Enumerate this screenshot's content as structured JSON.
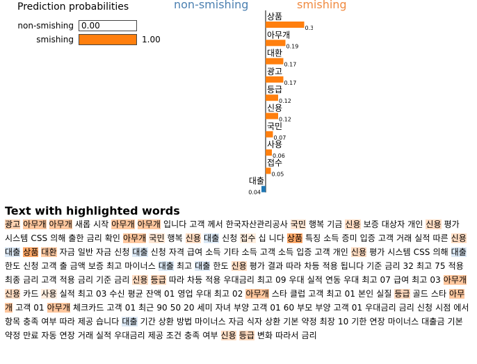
{
  "pred_probs": {
    "title": "Prediction probabilities",
    "rows": [
      {
        "label": "non-smishing",
        "value": 0.0,
        "value_text": "0.00",
        "color": "#1f77b4"
      },
      {
        "label": "smishing",
        "value": 1.0,
        "value_text": "1.00",
        "color": "#ff7f0e"
      }
    ]
  },
  "class_labels": {
    "left": "non-smishing",
    "right": "smishing"
  },
  "chart_data": {
    "type": "bar",
    "orientation": "horizontal",
    "categories": [
      "상품",
      "아무개",
      "대환",
      "광고",
      "등급",
      "신용",
      "국민",
      "사용",
      "접수",
      "대출"
    ],
    "values": [
      0.37,
      0.19,
      0.17,
      0.17,
      0.12,
      0.12,
      0.07,
      0.06,
      0.05,
      -0.04
    ],
    "labels": [
      "0.37",
      "0.19",
      "0.17",
      "0.17",
      "0.12",
      "0.12",
      "0.07",
      "0.06",
      "0.05",
      "0.04"
    ],
    "colors": {
      "positive": "#ff7f0e",
      "negative": "#1f77b4"
    }
  },
  "text_section": {
    "title": "Text with highlighted words",
    "tokens": [
      {
        "t": "광고",
        "h": "#ffd2b0"
      },
      {
        "t": "아무개",
        "h": "#ffc79e"
      },
      {
        "t": "아무개",
        "h": "#ffc79e"
      },
      {
        "t": "새롭"
      },
      {
        "t": "시작"
      },
      {
        "t": "아무개",
        "h": "#ffc79e"
      },
      {
        "t": "아무개",
        "h": "#ffc79e"
      },
      {
        "t": "입니다"
      },
      {
        "t": "고객"
      },
      {
        "t": "께서"
      },
      {
        "t": "한국자산관리공사"
      },
      {
        "t": "국민",
        "h": "#ffe6d3"
      },
      {
        "t": "행복"
      },
      {
        "t": "기금"
      },
      {
        "t": "신용",
        "h": "#ffdcc2"
      },
      {
        "t": "보증"
      },
      {
        "t": "대상자"
      },
      {
        "t": "개인"
      },
      {
        "t": "신용",
        "h": "#ffdcc2"
      },
      {
        "t": "평가"
      },
      {
        "t": "시스템"
      },
      {
        "t": "CSS"
      },
      {
        "t": "의해"
      },
      {
        "t": "출한"
      },
      {
        "t": "금리"
      },
      {
        "t": "확인"
      },
      {
        "t": "아무개",
        "h": "#ffc79e"
      },
      {
        "t": "국민",
        "h": "#ffe6d3"
      },
      {
        "t": "행복"
      },
      {
        "t": "신용",
        "h": "#ffdcc2"
      },
      {
        "t": "대출",
        "h": "#dbe8f5"
      },
      {
        "t": "신청"
      },
      {
        "t": "접수",
        "h": "#ffeedf"
      },
      {
        "t": "십"
      },
      {
        "t": "니다"
      },
      {
        "t": "상품",
        "h": "#ffa868"
      },
      {
        "t": "특징"
      },
      {
        "t": "소득"
      },
      {
        "t": "증미"
      },
      {
        "t": "입증"
      },
      {
        "t": "고객"
      },
      {
        "t": "거래"
      },
      {
        "t": "실적"
      },
      {
        "t": "따른"
      },
      {
        "t": "신용",
        "h": "#ffdcc2"
      },
      {
        "t": "대출",
        "h": "#dbe8f5"
      },
      {
        "t": "상품",
        "h": "#ffa868"
      },
      {
        "t": "대환",
        "h": "#ffcaa3"
      },
      {
        "t": "자금"
      },
      {
        "t": "일반"
      },
      {
        "t": "자금"
      },
      {
        "t": "신청"
      },
      {
        "t": "대출",
        "h": "#dbe8f5"
      },
      {
        "t": "신청"
      },
      {
        "t": "자격"
      },
      {
        "t": "급여"
      },
      {
        "t": "소득"
      },
      {
        "t": "기타"
      },
      {
        "t": "소득"
      },
      {
        "t": "고객"
      },
      {
        "t": "소득"
      },
      {
        "t": "입증"
      },
      {
        "t": "고객"
      },
      {
        "t": "개인"
      },
      {
        "t": "신용",
        "h": "#ffdcc2"
      },
      {
        "t": "평가"
      },
      {
        "t": "시스템"
      },
      {
        "t": "CSS"
      },
      {
        "t": "의해"
      },
      {
        "t": "대출",
        "h": "#dbe8f5"
      },
      {
        "t": "한도"
      },
      {
        "t": "신청"
      },
      {
        "t": "고객"
      },
      {
        "t": "출"
      },
      {
        "t": "금액"
      },
      {
        "t": "보증"
      },
      {
        "t": "최고"
      },
      {
        "t": "마이너스"
      },
      {
        "t": "대출",
        "h": "#dbe8f5"
      },
      {
        "t": "최고"
      },
      {
        "t": "대출",
        "h": "#dbe8f5"
      },
      {
        "t": "한도"
      },
      {
        "t": "신용",
        "h": "#ffdcc2"
      },
      {
        "t": "평가"
      },
      {
        "t": "결과"
      },
      {
        "t": "따라"
      },
      {
        "t": "차등"
      },
      {
        "t": "적용"
      },
      {
        "t": "됩니다"
      },
      {
        "t": "기준"
      },
      {
        "t": "금리"
      },
      {
        "t": "32"
      },
      {
        "t": "최고"
      },
      {
        "t": "75"
      },
      {
        "t": "적용"
      },
      {
        "t": "최종"
      },
      {
        "t": "금리"
      },
      {
        "t": "고객"
      },
      {
        "t": "적용"
      },
      {
        "t": "금리"
      },
      {
        "t": "기준"
      },
      {
        "t": "금리"
      },
      {
        "t": "신용",
        "h": "#ffdcc2"
      },
      {
        "t": "등급",
        "h": "#ffd9bd"
      },
      {
        "t": "따라"
      },
      {
        "t": "차등"
      },
      {
        "t": "적용"
      },
      {
        "t": "우대금리"
      },
      {
        "t": "최고"
      },
      {
        "t": "09"
      },
      {
        "t": "우대"
      },
      {
        "t": "실적"
      },
      {
        "t": "연동"
      },
      {
        "t": "우대"
      },
      {
        "t": "최고"
      },
      {
        "t": "07"
      },
      {
        "t": "급여"
      },
      {
        "t": "최고"
      },
      {
        "t": "03"
      },
      {
        "t": "아무개",
        "h": "#ffc79e"
      },
      {
        "t": "신용",
        "h": "#ffdcc2"
      },
      {
        "t": "카드"
      },
      {
        "t": "사용",
        "h": "#ffeedf"
      },
      {
        "t": "실적"
      },
      {
        "t": "최고"
      },
      {
        "t": "03"
      },
      {
        "t": "수신"
      },
      {
        "t": "평균"
      },
      {
        "t": "잔액"
      },
      {
        "t": "01"
      },
      {
        "t": "영업"
      },
      {
        "t": "우대"
      },
      {
        "t": "최고"
      },
      {
        "t": "02"
      },
      {
        "t": "아무개",
        "h": "#ffc79e"
      },
      {
        "t": "스타"
      },
      {
        "t": "클럽"
      },
      {
        "t": "고객"
      },
      {
        "t": "최고"
      },
      {
        "t": "01"
      },
      {
        "t": "본인"
      },
      {
        "t": "실질"
      },
      {
        "t": "등급",
        "h": "#ffd9bd"
      },
      {
        "t": "골드"
      },
      {
        "t": "스타"
      },
      {
        "t": "아무개",
        "h": "#ffc79e"
      },
      {
        "t": "고객"
      },
      {
        "t": "01"
      },
      {
        "t": "아무개",
        "h": "#ffc79e"
      },
      {
        "t": "체크카드"
      },
      {
        "t": "고객"
      },
      {
        "t": "01"
      },
      {
        "t": "최근"
      },
      {
        "t": "90"
      },
      {
        "t": "50"
      },
      {
        "t": "20"
      },
      {
        "t": "세미"
      },
      {
        "t": "자녀"
      },
      {
        "t": "부양"
      },
      {
        "t": "고객"
      },
      {
        "t": "01"
      },
      {
        "t": "60"
      },
      {
        "t": "부모"
      },
      {
        "t": "부양"
      },
      {
        "t": "고객"
      },
      {
        "t": "01"
      },
      {
        "t": "우대금리"
      },
      {
        "t": "금리"
      },
      {
        "t": "신청"
      },
      {
        "t": "시점"
      },
      {
        "t": "에서"
      },
      {
        "t": "항목"
      },
      {
        "t": "충족"
      },
      {
        "t": "여부"
      },
      {
        "t": "따라"
      },
      {
        "t": "제공"
      },
      {
        "t": "습니다"
      },
      {
        "t": "대출",
        "h": "#dbe8f5"
      },
      {
        "t": "기간"
      },
      {
        "t": "상환"
      },
      {
        "t": "방법"
      },
      {
        "t": "마이너스"
      },
      {
        "t": "자금"
      },
      {
        "t": "식자"
      },
      {
        "t": "상환"
      },
      {
        "t": "기본"
      },
      {
        "t": "약정"
      },
      {
        "t": "최장"
      },
      {
        "t": "10"
      },
      {
        "t": "기한"
      },
      {
        "t": "연장"
      },
      {
        "t": "마이너스"
      },
      {
        "t": "대출금"
      },
      {
        "t": "기본"
      },
      {
        "t": "약정"
      },
      {
        "t": "만료"
      },
      {
        "t": "자동"
      },
      {
        "t": "연장"
      },
      {
        "t": "거래"
      },
      {
        "t": "실적"
      },
      {
        "t": "우대금리"
      },
      {
        "t": "제공"
      },
      {
        "t": "조건"
      },
      {
        "t": "충족"
      },
      {
        "t": "여부"
      },
      {
        "t": "신용",
        "h": "#ffdcc2"
      },
      {
        "t": "등급",
        "h": "#ffd9bd"
      },
      {
        "t": "변화"
      },
      {
        "t": "따라서"
      },
      {
        "t": "금리"
      }
    ]
  }
}
